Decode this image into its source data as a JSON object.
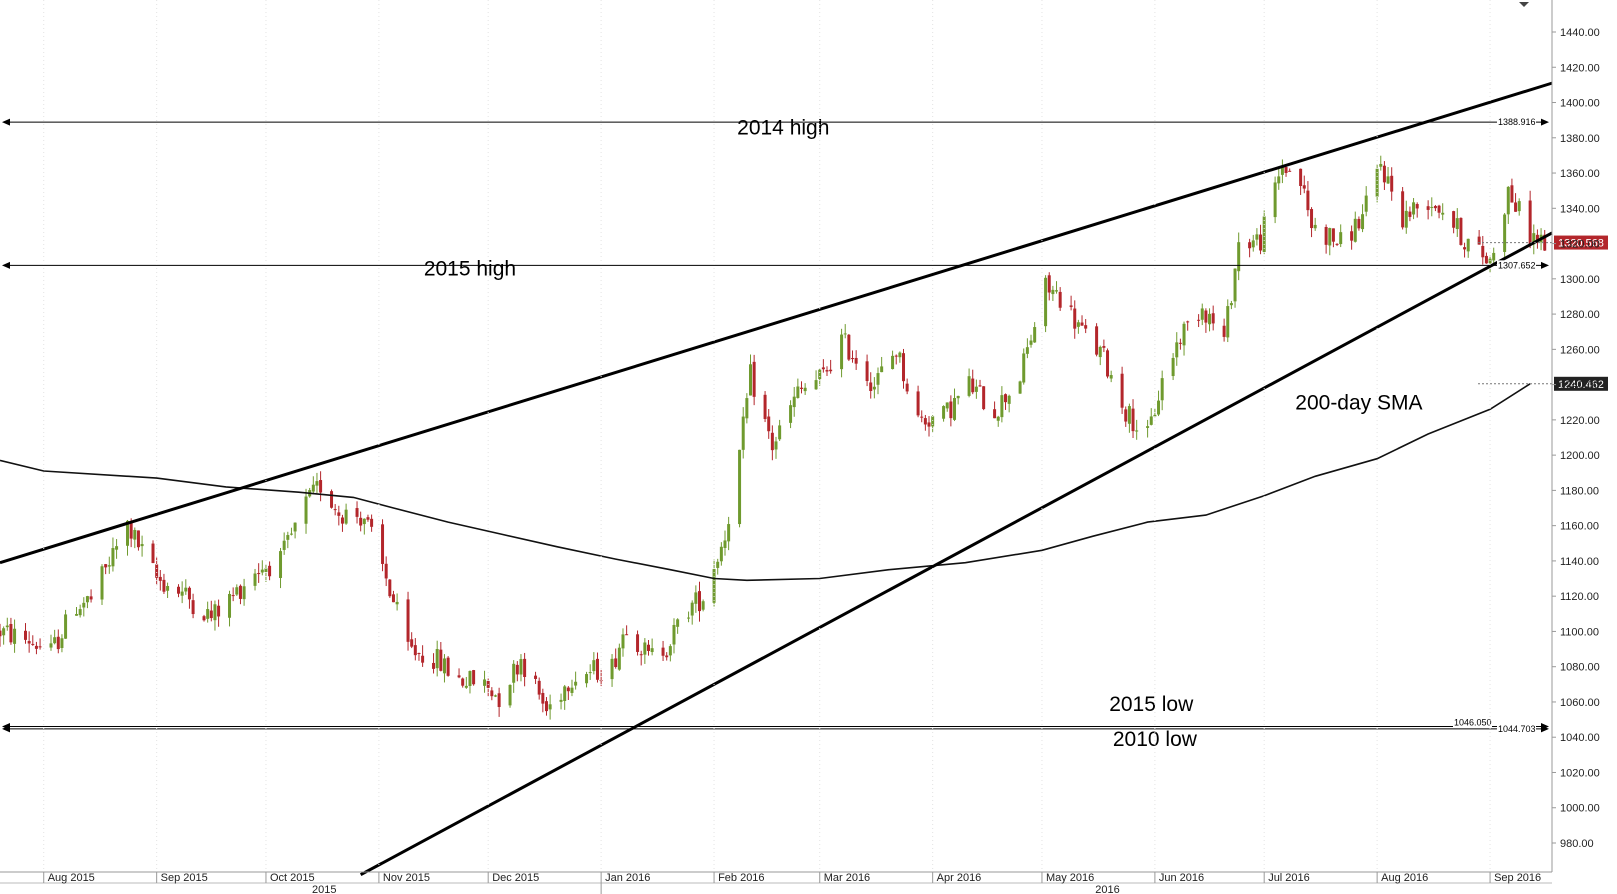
{
  "chart_data": {
    "type": "candlestick",
    "y_range": [
      962,
      1448
    ],
    "y_ticks": [
      "1440.00",
      "1420.00",
      "1400.00",
      "1380.00",
      "1360.00",
      "1340.00",
      "1320.00",
      "1300.00",
      "1280.00",
      "1260.00",
      "1240.00",
      "1220.00",
      "1200.00",
      "1180.00",
      "1160.00",
      "1140.00",
      "1120.00",
      "1100.00",
      "1080.00",
      "1060.00",
      "1040.00",
      "1020.00",
      "1000.00",
      "980.00"
    ],
    "x_range": [
      "2015-07-20",
      "2016-09-18"
    ],
    "x_ticks": [
      {
        "date": "2015-08-01",
        "label": "Aug 2015"
      },
      {
        "date": "2015-09-01",
        "label": "Sep 2015"
      },
      {
        "date": "2015-10-01",
        "label": "Oct 2015"
      },
      {
        "date": "2015-11-01",
        "label": "Nov 2015"
      },
      {
        "date": "2015-12-01",
        "label": "Dec 2015"
      },
      {
        "date": "2016-01-01",
        "label": "Jan 2016"
      },
      {
        "date": "2016-02-01",
        "label": "Feb 2016"
      },
      {
        "date": "2016-03-01",
        "label": "Mar 2016"
      },
      {
        "date": "2016-04-01",
        "label": "Apr 2016"
      },
      {
        "date": "2016-05-01",
        "label": "May 2016"
      },
      {
        "date": "2016-06-01",
        "label": "Jun 2016"
      },
      {
        "date": "2016-07-01",
        "label": "Jul 2016"
      },
      {
        "date": "2016-08-01",
        "label": "Aug 2016"
      },
      {
        "date": "2016-09-01",
        "label": "Sep 2016"
      }
    ],
    "year_labels": [
      {
        "date": "2015-10-17",
        "label": "2015"
      },
      {
        "date": "2016-05-19",
        "label": "2016"
      }
    ],
    "year_divider": "2016-01-01",
    "colors": {
      "up": "#6f9a2e",
      "down": "#b3262b",
      "tag": "#b3262b",
      "tag_sma": "#222222"
    },
    "price_path": [
      [
        "2015-07-20",
        1100
      ],
      [
        "2015-07-28",
        1095
      ],
      [
        "2015-08-03",
        1088
      ],
      [
        "2015-08-10",
        1115
      ],
      [
        "2015-08-14",
        1118
      ],
      [
        "2015-08-24",
        1160
      ],
      [
        "2015-09-01",
        1130
      ],
      [
        "2015-09-08",
        1122
      ],
      [
        "2015-09-16",
        1108
      ],
      [
        "2015-09-22",
        1120
      ],
      [
        "2015-09-28",
        1135
      ],
      [
        "2015-10-05",
        1140
      ],
      [
        "2015-10-12",
        1172
      ],
      [
        "2015-10-16",
        1183
      ],
      [
        "2015-10-21",
        1168
      ],
      [
        "2015-10-28",
        1165
      ],
      [
        "2015-11-03",
        1130
      ],
      [
        "2015-11-09",
        1090
      ],
      [
        "2015-11-16",
        1085
      ],
      [
        "2015-11-23",
        1073
      ],
      [
        "2015-11-30",
        1070
      ],
      [
        "2015-12-04",
        1063
      ],
      [
        "2015-12-10",
        1085
      ],
      [
        "2015-12-17",
        1055
      ],
      [
        "2015-12-24",
        1075
      ],
      [
        "2016-01-04",
        1080
      ],
      [
        "2016-01-08",
        1105
      ],
      [
        "2016-01-14",
        1085
      ],
      [
        "2016-01-19",
        1092
      ],
      [
        "2016-01-25",
        1113
      ],
      [
        "2016-01-29",
        1120
      ],
      [
        "2016-02-04",
        1155
      ],
      [
        "2016-02-08",
        1200
      ],
      [
        "2016-02-11",
        1245
      ],
      [
        "2016-02-17",
        1205
      ],
      [
        "2016-02-24",
        1235
      ],
      [
        "2016-03-02",
        1245
      ],
      [
        "2016-03-07",
        1265
      ],
      [
        "2016-03-11",
        1255
      ],
      [
        "2016-03-16",
        1240
      ],
      [
        "2016-03-22",
        1260
      ],
      [
        "2016-03-28",
        1220
      ],
      [
        "2016-04-04",
        1222
      ],
      [
        "2016-04-11",
        1240
      ],
      [
        "2016-04-18",
        1225
      ],
      [
        "2016-04-25",
        1245
      ],
      [
        "2016-05-02",
        1295
      ],
      [
        "2016-05-06",
        1290
      ],
      [
        "2016-05-12",
        1270
      ],
      [
        "2016-05-18",
        1255
      ],
      [
        "2016-05-24",
        1225
      ],
      [
        "2016-05-30",
        1210
      ],
      [
        "2016-06-03",
        1242
      ],
      [
        "2016-06-08",
        1268
      ],
      [
        "2016-06-14",
        1285
      ],
      [
        "2016-06-20",
        1265
      ],
      [
        "2016-06-24",
        1320
      ],
      [
        "2016-06-30",
        1322
      ],
      [
        "2016-07-06",
        1365
      ],
      [
        "2016-07-11",
        1355
      ],
      [
        "2016-07-14",
        1330
      ],
      [
        "2016-07-22",
        1320
      ],
      [
        "2016-07-28",
        1335
      ],
      [
        "2016-08-02",
        1365
      ],
      [
        "2016-08-08",
        1335
      ],
      [
        "2016-08-15",
        1345
      ],
      [
        "2016-08-19",
        1340
      ],
      [
        "2016-08-25",
        1322
      ],
      [
        "2016-09-01",
        1310
      ],
      [
        "2016-09-06",
        1350
      ],
      [
        "2016-09-12",
        1325
      ],
      [
        "2016-09-16",
        1320
      ]
    ],
    "sma_200": [
      [
        "2015-07-20",
        1197
      ],
      [
        "2015-08-01",
        1191
      ],
      [
        "2015-09-01",
        1187
      ],
      [
        "2015-09-20",
        1182
      ],
      [
        "2015-10-10",
        1179
      ],
      [
        "2015-10-25",
        1176
      ],
      [
        "2015-11-05",
        1170
      ],
      [
        "2015-11-20",
        1162
      ],
      [
        "2015-12-05",
        1155
      ],
      [
        "2015-12-20",
        1148
      ],
      [
        "2016-01-05",
        1141
      ],
      [
        "2016-01-20",
        1135
      ],
      [
        "2016-02-01",
        1130
      ],
      [
        "2016-02-10",
        1129
      ],
      [
        "2016-03-01",
        1130
      ],
      [
        "2016-03-20",
        1135
      ],
      [
        "2016-04-10",
        1139
      ],
      [
        "2016-05-01",
        1146
      ],
      [
        "2016-05-15",
        1154
      ],
      [
        "2016-05-30",
        1162
      ],
      [
        "2016-06-15",
        1166
      ],
      [
        "2016-07-01",
        1177
      ],
      [
        "2016-07-15",
        1188
      ],
      [
        "2016-08-01",
        1198
      ],
      [
        "2016-08-15",
        1212
      ],
      [
        "2016-09-01",
        1226
      ],
      [
        "2016-09-12",
        1240.462
      ]
    ],
    "trendlines": [
      {
        "start": [
          "2015-07-20",
          1139
        ],
        "end": [
          "2016-09-18",
          1411
        ]
      },
      {
        "start": [
          "2015-10-27",
          962
        ],
        "end": [
          "2016-09-18",
          1326
        ]
      }
    ],
    "levels": [
      {
        "value": 1388.916,
        "value_label": "1388.916"
      },
      {
        "value": 1307.652,
        "value_label": "1307.652"
      },
      {
        "value": 1046.05,
        "value_label": "1046.050"
      },
      {
        "value": 1044.703,
        "value_label": "1044.703"
      }
    ],
    "annotations": [
      {
        "text": "2014 high",
        "date": "2016-02-20",
        "value": 1382
      },
      {
        "text": "2015 high",
        "date": "2015-11-26",
        "value": 1302
      },
      {
        "text": "2015 low",
        "date": "2016-05-31",
        "value": 1055
      },
      {
        "text": "2010 low",
        "date": "2016-06-01",
        "value": 1035
      },
      {
        "text": "200-day SMA",
        "date": "2016-07-27",
        "value": 1226
      }
    ],
    "last_price": {
      "value": 1320.568,
      "label": "1320.568"
    },
    "sma_price": {
      "value": 1240.462,
      "label": "1240.462"
    }
  }
}
